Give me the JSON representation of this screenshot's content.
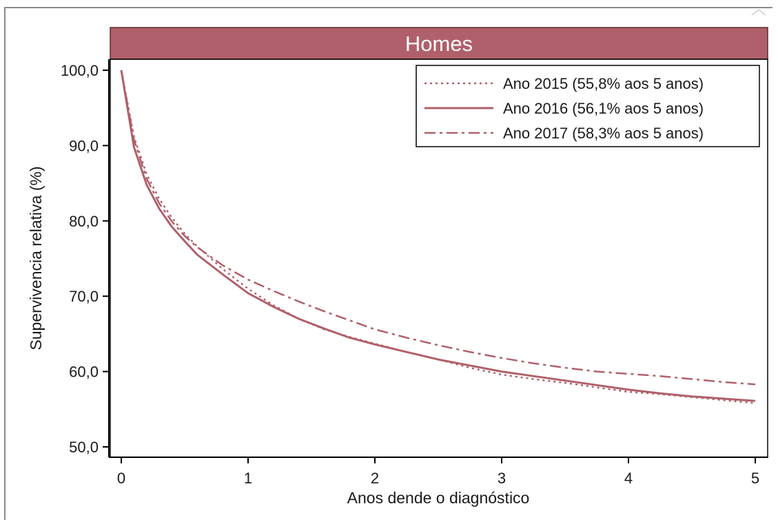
{
  "colors": {
    "series": "#b0606a",
    "strip": "#b0606a",
    "strip_border": "#5a2a30",
    "axis": "#000000"
  },
  "chart_data": {
    "type": "line",
    "title": "Homes",
    "xlabel": "Anos dende o diagnóstico",
    "ylabel": "Supervivencia relativa (%)",
    "xlim": [
      0,
      5
    ],
    "ylim": [
      50,
      100
    ],
    "x_ticks": [
      "0",
      "1",
      "2",
      "3",
      "4",
      "5"
    ],
    "y_ticks": [
      "50,0",
      "60,0",
      "70,0",
      "80,0",
      "90,0",
      "100,0"
    ],
    "grid": false,
    "legend_position": "top-right",
    "x": [
      0,
      0.1,
      0.2,
      0.3,
      0.4,
      0.5,
      0.6,
      0.8,
      1.0,
      1.2,
      1.4,
      1.6,
      1.8,
      2.0,
      2.25,
      2.5,
      2.75,
      3.0,
      3.25,
      3.5,
      3.75,
      4.0,
      4.25,
      4.5,
      4.75,
      5.0
    ],
    "series": [
      {
        "name": "Ano 2015 (55,8% aos 5 anos)",
        "dash": "dotted",
        "values": [
          100,
          91.2,
          86.2,
          82.9,
          80.4,
          78.3,
          76.6,
          73.6,
          71.0,
          68.8,
          67.0,
          65.6,
          64.6,
          63.7,
          62.6,
          61.6,
          60.5,
          59.6,
          59.0,
          58.5,
          57.9,
          57.3,
          57.0,
          56.6,
          56.2,
          55.8
        ]
      },
      {
        "name": "Ano 2016 (56,1% aos 5 anos)",
        "dash": "solid",
        "values": [
          100,
          89.8,
          84.8,
          81.6,
          79.2,
          77.3,
          75.5,
          72.9,
          70.4,
          68.6,
          67.0,
          65.7,
          64.5,
          63.6,
          62.6,
          61.6,
          60.8,
          60.0,
          59.4,
          58.8,
          58.2,
          57.6,
          57.1,
          56.7,
          56.4,
          56.1
        ]
      },
      {
        "name": "Ano 2017 (58,3% aos 5 anos)",
        "dash": "dashdot",
        "values": [
          100,
          90.8,
          85.6,
          82.3,
          79.9,
          78.0,
          76.5,
          74.1,
          72.2,
          70.7,
          69.3,
          68.0,
          66.8,
          65.6,
          64.5,
          63.5,
          62.6,
          61.8,
          61.1,
          60.5,
          60.0,
          59.7,
          59.4,
          59.0,
          58.6,
          58.3
        ]
      }
    ]
  }
}
